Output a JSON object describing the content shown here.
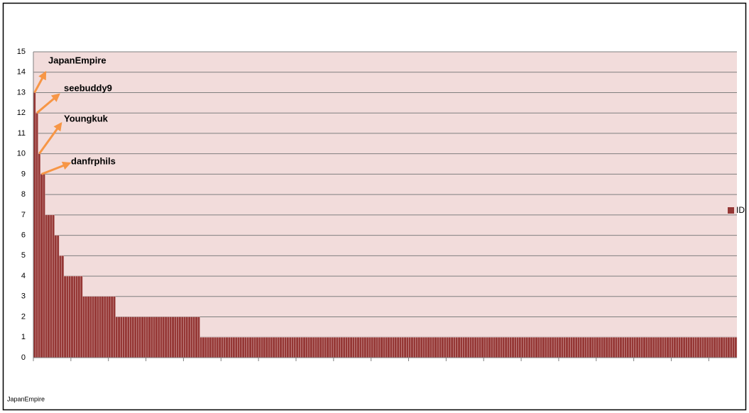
{
  "chart_data": {
    "type": "bar",
    "categories": [
      "JapanEmpire",
      null,
      null,
      null,
      null,
      null,
      null,
      null,
      null,
      null,
      null,
      null,
      null,
      null,
      null,
      null,
      null,
      null,
      null,
      null,
      null,
      null,
      null,
      null,
      null,
      null,
      null,
      null,
      null,
      null,
      null,
      null,
      null,
      null,
      null,
      null,
      null,
      null,
      null,
      null,
      null,
      null,
      null,
      null,
      null,
      null,
      null,
      null,
      null,
      null,
      null,
      null,
      null,
      null,
      null,
      null,
      null,
      null,
      null,
      null,
      null,
      null,
      null,
      null,
      null,
      null,
      null,
      null,
      null,
      null,
      null,
      null,
      null,
      null,
      null,
      null,
      null,
      null,
      null,
      null,
      null,
      null,
      null,
      null,
      null,
      null,
      null,
      null,
      null,
      null,
      null,
      null,
      null,
      null,
      null,
      null,
      null,
      null,
      null,
      null,
      null,
      null,
      null,
      null,
      null,
      null,
      null,
      null,
      null,
      null,
      null,
      null,
      null,
      null,
      null,
      null,
      null,
      null,
      null,
      null,
      null,
      null,
      null,
      null,
      null,
      null,
      null,
      null,
      null,
      null,
      null,
      null,
      null,
      null,
      null,
      null,
      null,
      null,
      null,
      null,
      null,
      null,
      null,
      null,
      null,
      null,
      null,
      null,
      null,
      null,
      null,
      null,
      null,
      null,
      null,
      null,
      null,
      null,
      null,
      null,
      null,
      null,
      null,
      null,
      null,
      null,
      null,
      null,
      null,
      null,
      null,
      null,
      null,
      null,
      null,
      null,
      null,
      null,
      null,
      null,
      null,
      null,
      null,
      null,
      null,
      null,
      null,
      null,
      null,
      null,
      null,
      null,
      null,
      null,
      null,
      null,
      null,
      null,
      null,
      null,
      null,
      null,
      null,
      null,
      null,
      null,
      null,
      null,
      null,
      null,
      null,
      null,
      null,
      null,
      null,
      null,
      null,
      null,
      null,
      null,
      null,
      null,
      null,
      null,
      null,
      null,
      null,
      null,
      null,
      null,
      null,
      null,
      null,
      null,
      null,
      null,
      null,
      null,
      null,
      null,
      null,
      null,
      null,
      null,
      null,
      null,
      null,
      null,
      null,
      null,
      null,
      null,
      null,
      null,
      null,
      null,
      null,
      null,
      null,
      null,
      null,
      null,
      null,
      null,
      null,
      null,
      null,
      null,
      null,
      null,
      null,
      null,
      null,
      null,
      null,
      null,
      null,
      null,
      null,
      null,
      null,
      null,
      null,
      null,
      null,
      null,
      null,
      null,
      null,
      null,
      null,
      null,
      null,
      null,
      null,
      null,
      null,
      null,
      null,
      null
    ],
    "series": [
      {
        "name": "ID",
        "color": "#953735",
        "values": [
          13,
          12,
          10,
          9,
          9,
          7,
          7,
          7,
          7,
          6,
          6,
          5,
          5,
          4,
          4,
          4,
          4,
          4,
          4,
          4,
          4,
          3,
          3,
          3,
          3,
          3,
          3,
          3,
          3,
          3,
          3,
          3,
          3,
          3,
          3,
          2,
          2,
          2,
          2,
          2,
          2,
          2,
          2,
          2,
          2,
          2,
          2,
          2,
          2,
          2,
          2,
          2,
          2,
          2,
          2,
          2,
          2,
          2,
          2,
          2,
          2,
          2,
          2,
          2,
          2,
          2,
          2,
          2,
          2,
          2,
          2,
          1,
          1,
          1,
          1,
          1,
          1,
          1,
          1,
          1,
          1,
          1,
          1,
          1,
          1,
          1,
          1,
          1,
          1,
          1,
          1,
          1,
          1,
          1,
          1,
          1,
          1,
          1,
          1,
          1,
          1,
          1,
          1,
          1,
          1,
          1,
          1,
          1,
          1,
          1,
          1,
          1,
          1,
          1,
          1,
          1,
          1,
          1,
          1,
          1,
          1,
          1,
          1,
          1,
          1,
          1,
          1,
          1,
          1,
          1,
          1,
          1,
          1,
          1,
          1,
          1,
          1,
          1,
          1,
          1,
          1,
          1,
          1,
          1,
          1,
          1,
          1,
          1,
          1,
          1,
          1,
          1,
          1,
          1,
          1,
          1,
          1,
          1,
          1,
          1,
          1,
          1,
          1,
          1,
          1,
          1,
          1,
          1,
          1,
          1,
          1,
          1,
          1,
          1,
          1,
          1,
          1,
          1,
          1,
          1,
          1,
          1,
          1,
          1,
          1,
          1,
          1,
          1,
          1,
          1,
          1,
          1,
          1,
          1,
          1,
          1,
          1,
          1,
          1,
          1,
          1,
          1,
          1,
          1,
          1,
          1,
          1,
          1,
          1,
          1,
          1,
          1,
          1,
          1,
          1,
          1,
          1,
          1,
          1,
          1,
          1,
          1,
          1,
          1,
          1,
          1,
          1,
          1,
          1,
          1,
          1,
          1,
          1,
          1,
          1,
          1,
          1,
          1,
          1,
          1,
          1,
          1,
          1,
          1,
          1,
          1,
          1,
          1,
          1,
          1,
          1,
          1,
          1,
          1,
          1,
          1,
          1,
          1,
          1,
          1,
          1,
          1,
          1,
          1,
          1,
          1,
          1,
          1,
          1,
          1,
          1,
          1,
          1,
          1,
          1,
          1,
          1,
          1,
          1,
          1,
          1,
          1,
          1,
          1,
          1,
          1,
          1,
          1,
          1,
          1,
          1,
          1,
          1,
          1,
          1,
          1,
          1,
          1,
          1,
          1
        ]
      }
    ],
    "annotations": [
      {
        "text": "JapanEmpire"
      },
      {
        "text": "seebuddy9"
      },
      {
        "text": "Youngkuk"
      },
      {
        "text": "danfrphils"
      }
    ],
    "ylim": [
      0,
      15
    ],
    "yticks": [
      0,
      1,
      2,
      3,
      4,
      5,
      6,
      7,
      8,
      9,
      10,
      11,
      12,
      13,
      14,
      15
    ],
    "grid": true,
    "legend": "right",
    "annotation_color": "#f79646",
    "plot_background": "#f2dcdb"
  }
}
